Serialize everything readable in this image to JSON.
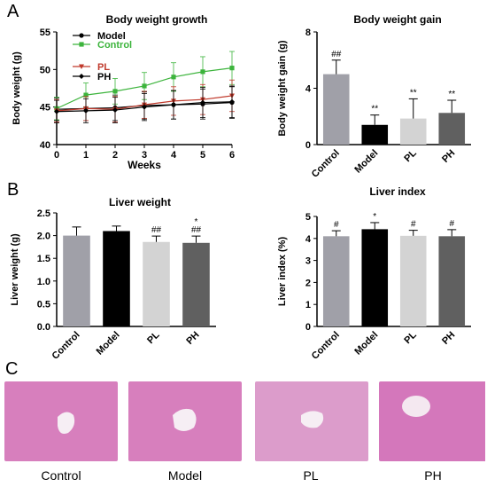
{
  "panel_letters": [
    "A",
    "B",
    "C"
  ],
  "chart_data": [
    {
      "type": "line",
      "title": "Body weight growth",
      "xlabel": "Weeks",
      "ylabel": "Body weight (g)",
      "x": [
        0,
        1,
        2,
        3,
        4,
        5,
        6
      ],
      "xlim": [
        0,
        6
      ],
      "ylim": [
        40,
        55
      ],
      "yticks": [
        40,
        45,
        50,
        55
      ],
      "legend_position": "top-left",
      "series": [
        {
          "name": "Model",
          "color": "#000000",
          "marker": "circle",
          "values": [
            44.7,
            44.8,
            44.9,
            45.2,
            45.3,
            45.4,
            45.6
          ],
          "errors": [
            1.5,
            1.6,
            1.7,
            1.8,
            1.9,
            2.0,
            2.1
          ]
        },
        {
          "name": "Control",
          "color": "#3cb43c",
          "marker": "square",
          "values": [
            44.8,
            46.6,
            47.1,
            47.8,
            49.0,
            49.7,
            50.2
          ],
          "errors": [
            1.5,
            1.6,
            1.7,
            1.8,
            1.9,
            2.0,
            2.2
          ]
        },
        {
          "name": "PL",
          "color": "#c0392b",
          "marker": "triangle-down",
          "values": [
            44.5,
            44.8,
            44.7,
            45.3,
            45.8,
            46.0,
            46.5
          ],
          "errors": [
            1.5,
            1.6,
            1.7,
            1.8,
            1.9,
            2.0,
            2.1
          ]
        },
        {
          "name": "PH",
          "color": "#000000",
          "marker": "diamond",
          "values": [
            44.4,
            44.5,
            44.6,
            45.0,
            45.3,
            45.6,
            45.7
          ],
          "errors": [
            1.5,
            1.6,
            1.7,
            1.8,
            1.9,
            2.0,
            2.1
          ]
        }
      ]
    },
    {
      "type": "bar",
      "title": "Body weight gain",
      "ylabel": "Body weight gain (g)",
      "categories": [
        "Control",
        "Model",
        "PL",
        "PH"
      ],
      "values": [
        5.0,
        1.4,
        1.85,
        2.25
      ],
      "errors": [
        1.0,
        0.7,
        1.4,
        0.9
      ],
      "annotations": [
        "##",
        "**",
        "**",
        "**"
      ],
      "colors": [
        "#a0a0a8",
        "#000000",
        "#d3d3d3",
        "#606060"
      ],
      "ylim": [
        0,
        8
      ],
      "yticks": [
        0,
        4,
        8
      ]
    },
    {
      "type": "bar",
      "title": "Liver weight",
      "ylabel": "Liver weight (g)",
      "categories": [
        "Control",
        "Model",
        "PL",
        "PH"
      ],
      "values": [
        2.0,
        2.1,
        1.86,
        1.84
      ],
      "errors": [
        0.19,
        0.11,
        0.13,
        0.15
      ],
      "annotations": [
        "",
        "",
        "##",
        "*\n##"
      ],
      "colors": [
        "#a0a0a8",
        "#000000",
        "#d3d3d3",
        "#606060"
      ],
      "ylim": [
        0,
        2.5
      ],
      "yticks": [
        "0.0",
        "0.5",
        "1.0",
        "1.5",
        "2.0",
        "2.5"
      ]
    },
    {
      "type": "bar",
      "title": "Liver index",
      "ylabel": "Liver index (%)",
      "categories": [
        "Control",
        "Model",
        "PL",
        "PH"
      ],
      "values": [
        4.1,
        4.42,
        4.12,
        4.1
      ],
      "errors": [
        0.25,
        0.3,
        0.25,
        0.3
      ],
      "annotations": [
        "#",
        "*",
        "#",
        "#"
      ],
      "colors": [
        "#a0a0a8",
        "#000000",
        "#d3d3d3",
        "#606060"
      ],
      "ylim": [
        0,
        5
      ],
      "yticks": [
        0,
        1,
        2,
        3,
        4,
        5
      ]
    }
  ],
  "histology": {
    "labels": [
      "Control",
      "Model",
      "PL",
      "PH"
    ],
    "tissue_color": "#d77fbd"
  }
}
